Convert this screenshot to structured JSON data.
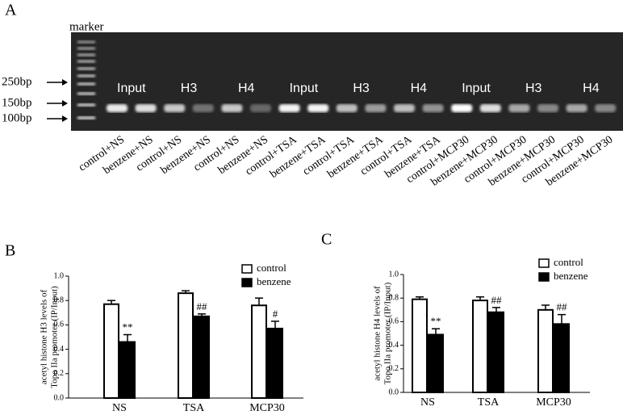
{
  "gel": {
    "label": "A",
    "marker": "marker",
    "sizes": [
      "250bp",
      "150bp",
      "100bp"
    ],
    "groups": [
      "Input",
      "H3",
      "H4",
      "Input",
      "H3",
      "H4",
      "Input",
      "H3",
      "H4"
    ],
    "lanes": [
      "control+NS",
      "benzene+NS",
      "control+NS",
      "benzene+NS",
      "control+NS",
      "benzene+NS",
      "control+TSA",
      "benzene+TSA",
      "control+TSA",
      "benzene+TSA",
      "control+TSA",
      "benzene+TSA",
      "control+MCP30",
      "benzene+MCP30",
      "control+MCP30",
      "benzene+MCP30",
      "control+MCP30",
      "benzene+MCP30"
    ]
  },
  "chart_data": [
    {
      "type": "bar",
      "label": "B",
      "ylabel": [
        "acetyl histone H3 levels of",
        "Topo IIa promoter (IP/Input)"
      ],
      "categories": [
        "NS",
        "TSA",
        "MCP30"
      ],
      "series": [
        {
          "name": "control",
          "color": "#ffffff",
          "values": [
            0.77,
            0.86,
            0.76
          ],
          "errors": [
            0.03,
            0.02,
            0.06
          ]
        },
        {
          "name": "benzene",
          "color": "#000000",
          "values": [
            0.46,
            0.67,
            0.57
          ],
          "errors": [
            0.06,
            0.02,
            0.06
          ],
          "annotations": [
            "**",
            "##",
            "#"
          ]
        }
      ],
      "ylim": [
        0,
        1
      ],
      "yticks": [
        {
          "value": 0,
          "label": "0.0"
        },
        0.2,
        0.4,
        0.6,
        0.8,
        {
          "value": 1,
          "label": "1.0"
        }
      ]
    },
    {
      "type": "bar",
      "label": "C",
      "ylabel": [
        "acetyl histone H4 levels of",
        "Topo IIa promoter (IP/Input)"
      ],
      "categories": [
        "NS",
        "TSA",
        "MCP30"
      ],
      "series": [
        {
          "name": "control",
          "color": "#ffffff",
          "values": [
            0.79,
            0.78,
            0.7
          ],
          "errors": [
            0.02,
            0.03,
            0.04
          ]
        },
        {
          "name": "benzene",
          "color": "#000000",
          "values": [
            0.49,
            0.68,
            0.58
          ],
          "errors": [
            0.05,
            0.04,
            0.08
          ],
          "annotations": [
            "**",
            "##",
            "##"
          ]
        }
      ],
      "ylim": [
        0,
        1
      ],
      "yticks": [
        {
          "value": 0,
          "label": "0.0"
        },
        0.2,
        0.4,
        0.6,
        0.8,
        {
          "value": 1,
          "label": "1.0"
        }
      ]
    }
  ]
}
